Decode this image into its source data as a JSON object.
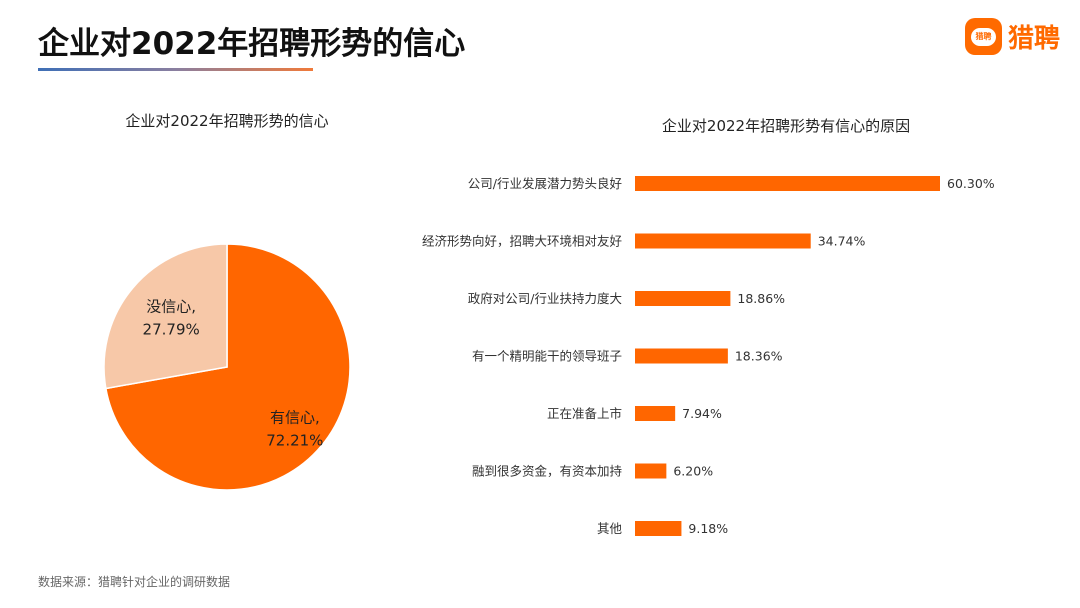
{
  "page": {
    "title": "企业对2022年招聘形势的信心",
    "source": "数据来源：猎聘针对企业的调研数据"
  },
  "logo": {
    "badge_text": "猎聘",
    "text": "猎聘",
    "color": "#ff6a00"
  },
  "colors": {
    "accent": "#ff6600",
    "pie_light": "#f7c8a8"
  },
  "chart_data": [
    {
      "type": "pie",
      "title": "企业对2022年招聘形势的信心",
      "slices": [
        {
          "label": "有信心,",
          "value": 72.21,
          "value_label": "72.21%",
          "color": "#ff6600"
        },
        {
          "label": "没信心,",
          "value": 27.79,
          "value_label": "27.79%",
          "color": "#f7c8a8"
        }
      ]
    },
    {
      "type": "bar",
      "orientation": "horizontal",
      "title": "企业对2022年招聘形势有信心的原因",
      "categories": [
        "公司/行业发展潜力势头良好",
        "经济形势向好，招聘大环境相对友好",
        "政府对公司/行业扶持力度大",
        "有一个精明能干的领导班子",
        "正在准备上市",
        "融到很多资金，有资本加持",
        "其他"
      ],
      "values": [
        60.3,
        34.74,
        18.86,
        18.36,
        7.94,
        6.2,
        9.18
      ],
      "value_labels": [
        "60.30%",
        "34.74%",
        "18.86%",
        "18.36%",
        "7.94%",
        "6.20%",
        "9.18%"
      ],
      "unit": "%",
      "color": "#ff6600"
    }
  ]
}
